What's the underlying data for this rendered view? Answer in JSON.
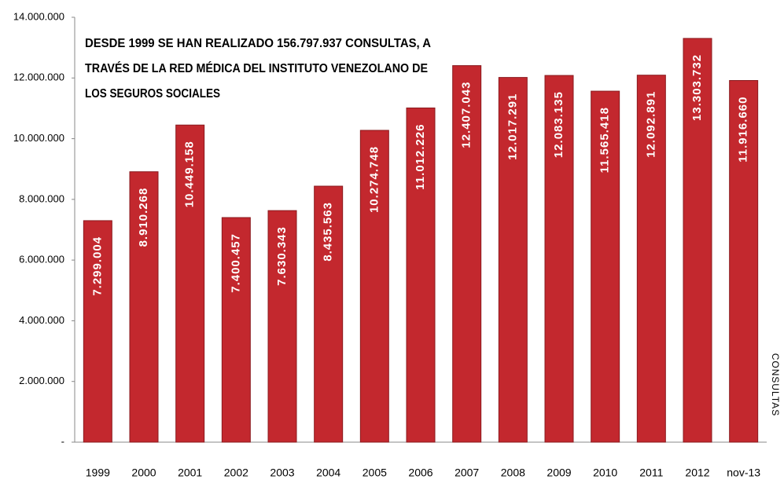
{
  "chart_data": {
    "type": "bar",
    "annotation": [
      "DESDE 1999 SE HAN REALIZADO  156.797.937 CONSULTAS, A",
      "TRAVÉS DE LA RED MÉDICA DEL INSTITUTO VENEZOLANO DE",
      "LOS SEGUROS  SOCIALES"
    ],
    "y_label": "CONSULTAS",
    "categories": [
      "1999",
      "2000",
      "2001",
      "2002",
      "2003",
      "2004",
      "2005",
      "2006",
      "2007",
      "2008",
      "2009",
      "2010",
      "2011",
      "2012",
      "nov-13"
    ],
    "values": [
      7299004,
      8910268,
      10449158,
      7400457,
      7630343,
      8435563,
      10274748,
      11012226,
      12407043,
      12017291,
      12083135,
      11565418,
      12092891,
      13303732,
      11916660
    ],
    "value_labels": [
      "7.299.004",
      "8.910.268",
      "10.449.158",
      "7.400.457",
      "7.630.343",
      "8.435.563",
      "10.274.748",
      "11.012.226",
      "12.407.043",
      "12.017.291",
      "12.083.135",
      "11.565.418",
      "12.092.891",
      "13.303.732",
      "11.916.660"
    ],
    "color": "#c3282e",
    "ylim": [
      0,
      14000000
    ],
    "yticks": [
      {
        "value": 0,
        "label": "-"
      },
      {
        "value": 2000000,
        "label": "2.000.000"
      },
      {
        "value": 4000000,
        "label": "4.000.000"
      },
      {
        "value": 6000000,
        "label": "6.000.000"
      },
      {
        "value": 8000000,
        "label": "8.000.000"
      },
      {
        "value": 10000000,
        "label": "10.000.000"
      },
      {
        "value": 12000000,
        "label": "12.000.000"
      },
      {
        "value": 14000000,
        "label": "14.000.000"
      }
    ],
    "grid": false
  }
}
